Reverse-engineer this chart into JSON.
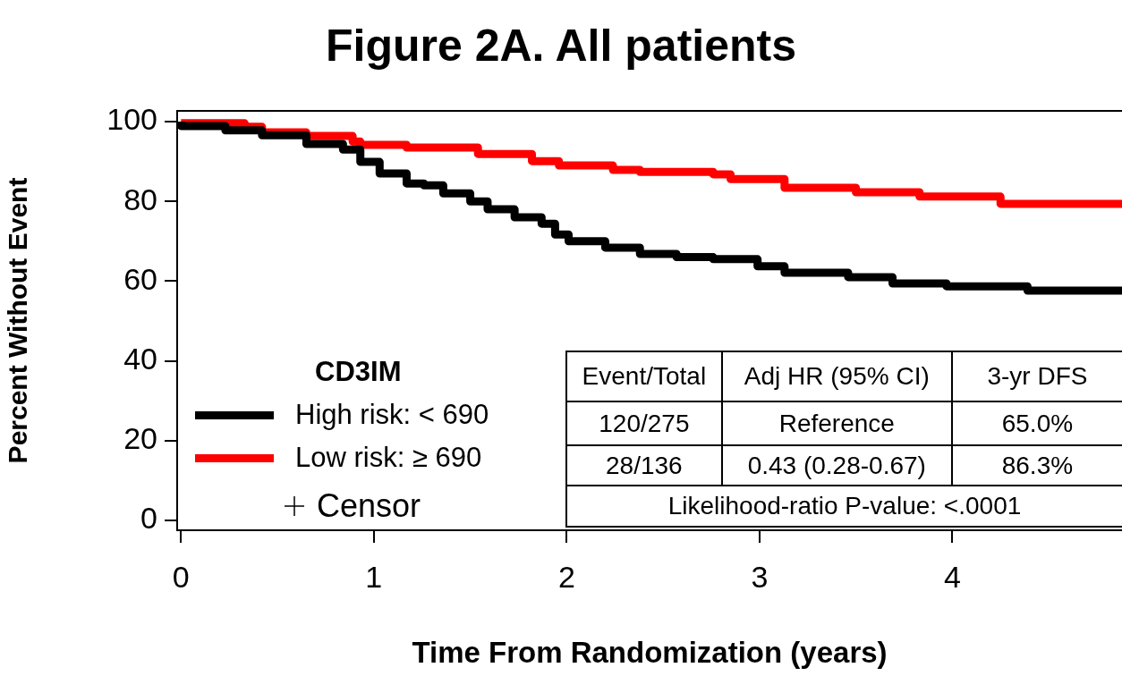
{
  "chart_data": {
    "type": "step",
    "title": "Figure 2A. All patients",
    "xlabel": "Time From Randomization (years)",
    "ylabel": "Percent Without Event",
    "legend_title": "CD3IM",
    "legend": "bottom left",
    "grid": false,
    "xlim": [
      -0.02,
      4.88
    ],
    "xticks": [
      0,
      1,
      2,
      3,
      4
    ],
    "ylim": [
      -2.5,
      102.7
    ],
    "yticks": [
      0,
      20,
      40,
      60,
      80,
      100
    ],
    "series": [
      {
        "name": "High risk: < 690",
        "color": "#000000",
        "x": [
          0,
          0.23,
          0.42,
          0.65,
          0.84,
          0.93,
          1.03,
          1.17,
          1.26,
          1.36,
          1.5,
          1.59,
          1.73,
          1.87,
          1.94,
          2.01,
          2.2,
          2.38,
          2.57,
          2.76,
          2.99,
          3.13,
          3.46,
          3.69,
          3.97,
          4.39,
          4.88
        ],
        "values": [
          100,
          98.9,
          97.8,
          96.6,
          94.4,
          93,
          89.9,
          87,
          84.5,
          84,
          82,
          80,
          78,
          76,
          74.4,
          71.7,
          70,
          68.4,
          66.8,
          66,
          65.5,
          63.7,
          62.1,
          61,
          59.4,
          58.7,
          57.6
        ]
      },
      {
        "name": "Low risk: ≥ 690",
        "color": "#ff0000",
        "x": [
          0,
          0.33,
          0.42,
          0.65,
          0.89,
          0.93,
          1.17,
          1.54,
          1.82,
          1.96,
          2.24,
          2.38,
          2.76,
          2.85,
          3.13,
          3.5,
          3.83,
          4.25,
          4.35,
          4.88
        ],
        "values": [
          100,
          99.6,
          98.7,
          97.3,
          96.4,
          95,
          94.2,
          93.5,
          91.9,
          90.1,
          89,
          87.9,
          87.4,
          86.8,
          85.6,
          83.4,
          82.3,
          81.2,
          79.4,
          79.4
        ]
      }
    ],
    "annotations": [
      "Censor",
      "Event/Total",
      "Adj HR (95% CI)",
      "3-yr DFS",
      "120/275",
      "Reference",
      "65.0%",
      "28/136",
      "0.43 (0.28-0.67)",
      "86.3%",
      "Likelihood-ratio P-value: <.0001"
    ]
  }
}
